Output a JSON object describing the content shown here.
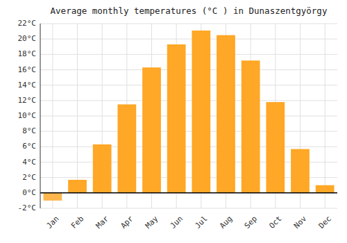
{
  "chart_data": {
    "type": "bar",
    "title": "Average monthly temperatures (°C ) in Dunaszentgyörgy",
    "categories": [
      "Jan",
      "Feb",
      "Mar",
      "Apr",
      "May",
      "Jun",
      "Jul",
      "Aug",
      "Sep",
      "Oct",
      "Nov",
      "Dec"
    ],
    "values": [
      -1.0,
      1.7,
      6.3,
      11.5,
      16.3,
      19.3,
      21.1,
      20.5,
      17.2,
      11.8,
      5.7,
      1.0
    ],
    "colors": [
      "#FFB74D",
      "#FFA726",
      "#FFA726",
      "#FFA726",
      "#FFA726",
      "#FFA726",
      "#FFA726",
      "#FFA726",
      "#FFA726",
      "#FFA726",
      "#FFA726",
      "#FFA726"
    ],
    "ylim": [
      -2,
      22
    ],
    "yticks": [
      {
        "value": -2,
        "label": "-2°C"
      },
      {
        "value": 0,
        "label": "0°C"
      },
      {
        "value": 2,
        "label": "2°C"
      },
      {
        "value": 4,
        "label": "4°C"
      },
      {
        "value": 6,
        "label": "6°C"
      },
      {
        "value": 8,
        "label": "8°C"
      },
      {
        "value": 10,
        "label": "10°C"
      },
      {
        "value": 12,
        "label": "12°C"
      },
      {
        "value": 14,
        "label": "14°C"
      },
      {
        "value": 16,
        "label": "16°C"
      },
      {
        "value": 18,
        "label": "18°C"
      },
      {
        "value": 20,
        "label": "20°C"
      },
      {
        "value": 22,
        "label": "22°C"
      }
    ],
    "grid": true
  }
}
